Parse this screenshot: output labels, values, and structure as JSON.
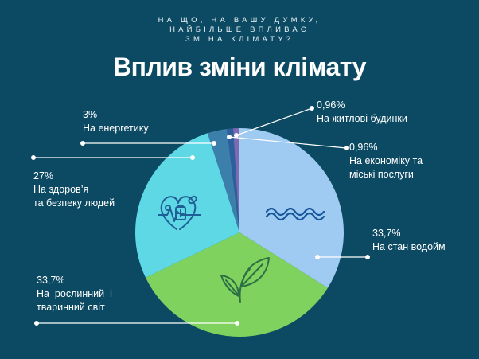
{
  "question": {
    "lines": [
      "НА ЩО, НА ВАШУ ДУМКУ,",
      "НАЙБІЛЬШЕ ВПЛИВАЄ",
      "ЗМІНА КЛІМАТУ?"
    ]
  },
  "title": "Вплив зміни клімату",
  "colors": {
    "background": "#0b4a62",
    "water": "#9fcaf2",
    "flora_fauna": "#7fd25e",
    "health": "#5fd8e6",
    "energy": "#3d7fab",
    "economy": "#2d5f9d",
    "housing": "#7c6bb0"
  },
  "labels": {
    "energy": {
      "pct": "3%",
      "text": "На енергетику"
    },
    "housing": {
      "pct": "0,96%",
      "text": "На житлові будинки"
    },
    "economy": {
      "pct": "0,96%",
      "text": "На економіку та\nміські послуги"
    },
    "health": {
      "pct": "27%",
      "text": "На здоров’я\nта безпеку людей"
    },
    "water": {
      "pct": "33,7%",
      "text": "На стан водойм"
    },
    "flora": {
      "pct": "33,7%",
      "text": "На  рослинний  і\nтваринний світ"
    }
  },
  "icons": [
    "health-heart-icon",
    "water-waves-icon",
    "plant-leaves-icon"
  ],
  "chart_data": {
    "type": "pie",
    "title": "Вплив зміни клімату",
    "start": "12 o'clock",
    "direction": "clockwise",
    "slices": [
      {
        "key": "water",
        "label": "На стан водойм",
        "value": 33.7
      },
      {
        "key": "flora_fauna",
        "label": "На рослинний і тваринний світ",
        "value": 33.7
      },
      {
        "key": "health",
        "label": "На здоров’я та безпеку людей",
        "value": 27
      },
      {
        "key": "energy",
        "label": "На енергетику",
        "value": 3
      },
      {
        "key": "economy",
        "label": "На економіку та міські послуги",
        "value": 0.96
      },
      {
        "key": "housing",
        "label": "На житлові будинки",
        "value": 0.96
      }
    ]
  }
}
